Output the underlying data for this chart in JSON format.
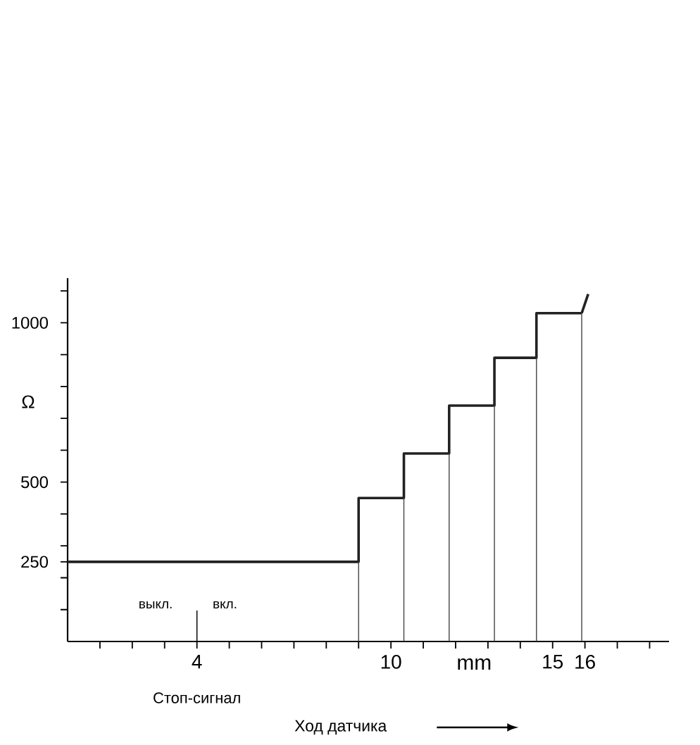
{
  "chart_data": {
    "type": "step",
    "xlabel": "Ход датчика",
    "ylabel": "Ω",
    "series": [
      {
        "color": "#222222",
        "x": [
          0,
          9,
          10.4,
          11.8,
          13.2,
          14.5,
          15.9
        ],
        "values": [
          250,
          450,
          590,
          740,
          890,
          1030,
          1030
        ]
      },
      {
        "type": "line",
        "color": "#222222",
        "x": [
          15.9,
          16.1
        ],
        "values": [
          1030,
          1090
        ]
      },
      {
        "type": "bar",
        "color": "#444444",
        "x": [
          9,
          10.4,
          11.8,
          13.2,
          14.5,
          15.9
        ],
        "values": [
          250,
          450,
          590,
          740,
          890,
          1030
        ]
      }
    ],
    "xlim": [
      0,
      18.6
    ],
    "ylim": [
      0,
      1140
    ],
    "xticks": [
      {
        "value": 1,
        "label": null
      },
      {
        "value": 2,
        "label": null
      },
      {
        "value": 3,
        "label": null
      },
      4,
      {
        "value": 5,
        "label": null
      },
      {
        "value": 6,
        "label": null
      },
      {
        "value": 7,
        "label": null
      },
      {
        "value": 8,
        "label": null
      },
      {
        "value": 9,
        "label": null
      },
      10,
      {
        "value": 11,
        "label": null
      },
      {
        "value": 12,
        "label": null
      },
      {
        "value": 13,
        "label": null
      },
      {
        "value": 14,
        "label": null
      },
      15,
      16,
      {
        "value": 17,
        "label": null
      },
      {
        "value": 18,
        "label": null
      }
    ],
    "yticks": [
      {
        "value": 100,
        "label": null
      },
      {
        "value": 200,
        "label": null
      },
      250,
      {
        "value": 300,
        "label": null
      },
      {
        "value": 400,
        "label": null
      },
      500,
      {
        "value": 600,
        "label": null
      },
      {
        "value": 700,
        "label": null
      },
      {
        "value": 800,
        "label": null
      },
      {
        "value": 900,
        "label": null
      },
      1000,
      {
        "value": 1100,
        "label": null
      }
    ],
    "ref_lines": [
      {
        "axis": "x",
        "value": 4,
        "label": "Стоп-сигнал"
      }
    ],
    "annotations": [
      "выкл.",
      "вкл.",
      "mm"
    ]
  }
}
